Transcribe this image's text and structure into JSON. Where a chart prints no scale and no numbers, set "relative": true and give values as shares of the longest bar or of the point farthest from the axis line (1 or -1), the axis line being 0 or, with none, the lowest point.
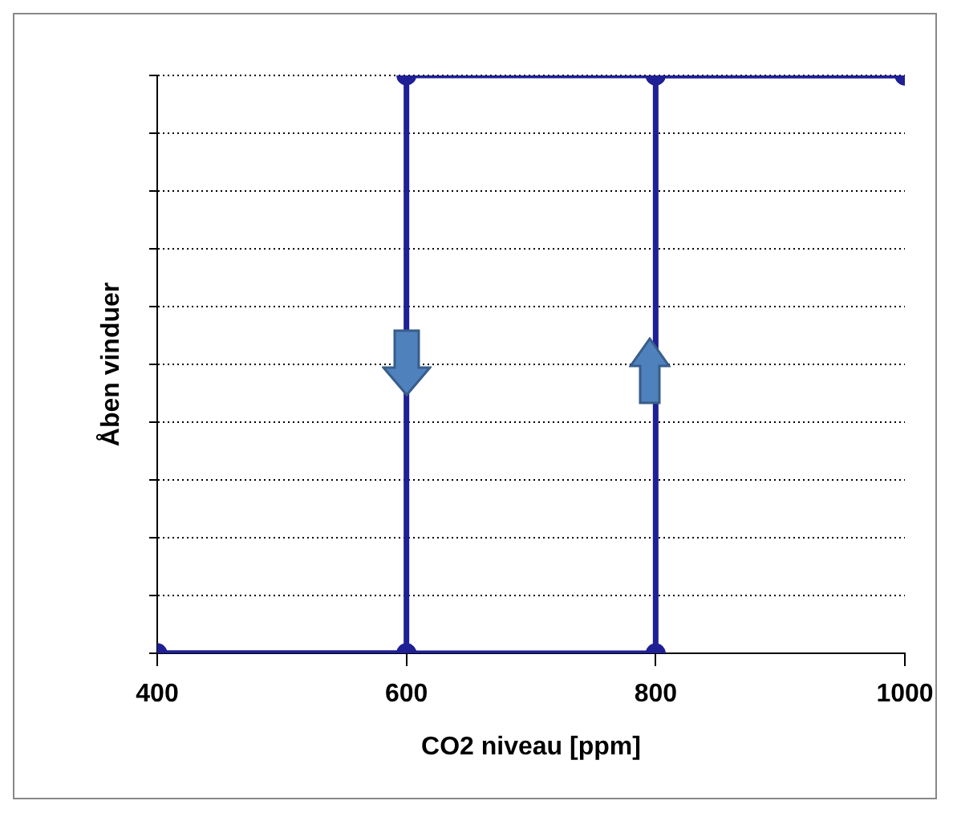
{
  "chart_data": {
    "type": "line",
    "xlabel": "CO2 niveau [ppm]",
    "ylabel": "Åben vinduer",
    "relative": true,
    "xlim": [
      400,
      1000
    ],
    "xticks": [
      400,
      600,
      800,
      1000
    ],
    "grid": "y",
    "legend": false,
    "marker": "circle",
    "line_style": "solid",
    "series": [
      {
        "color": "#1f1f96",
        "x": [
          1000,
          800,
          600,
          600,
          400
        ],
        "values": [
          1,
          1,
          1,
          0,
          0
        ]
      },
      {
        "color": "#1f1f96",
        "x": [
          400,
          600,
          800,
          800,
          1000
        ],
        "values": [
          0,
          0,
          0,
          1,
          1
        ]
      }
    ]
  }
}
